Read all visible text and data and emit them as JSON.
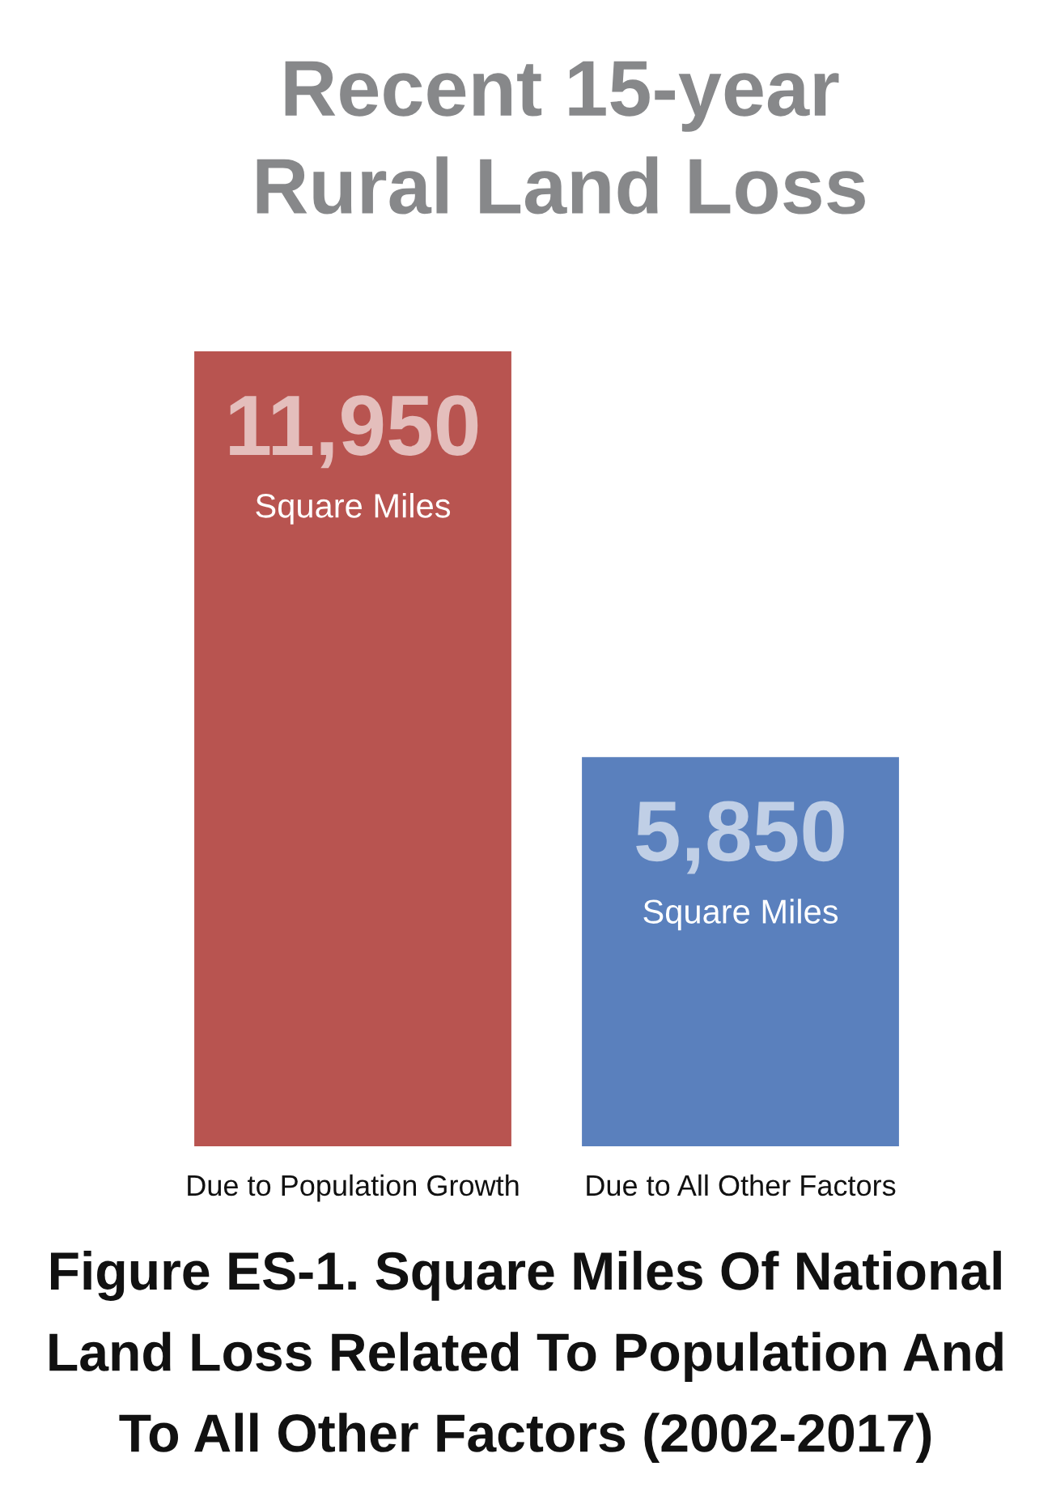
{
  "chart_data": {
    "type": "bar",
    "title": "Recent 15-year\nRural Land Loss",
    "categories": [
      "Due to Population Growth",
      "Due to All Other Factors"
    ],
    "values": [
      11950,
      5850
    ],
    "colors": [
      "#b85450",
      "#5a80bd"
    ],
    "value_labels": [
      "11,950\nSquare Miles",
      "5,850\nSquare Miles"
    ],
    "annotations": [
      "Figure ES-1. Square Miles Of National\nLand Loss Related To Population And\nTo All Other Factors (2002-2017)"
    ],
    "grid": false,
    "legend": false
  }
}
